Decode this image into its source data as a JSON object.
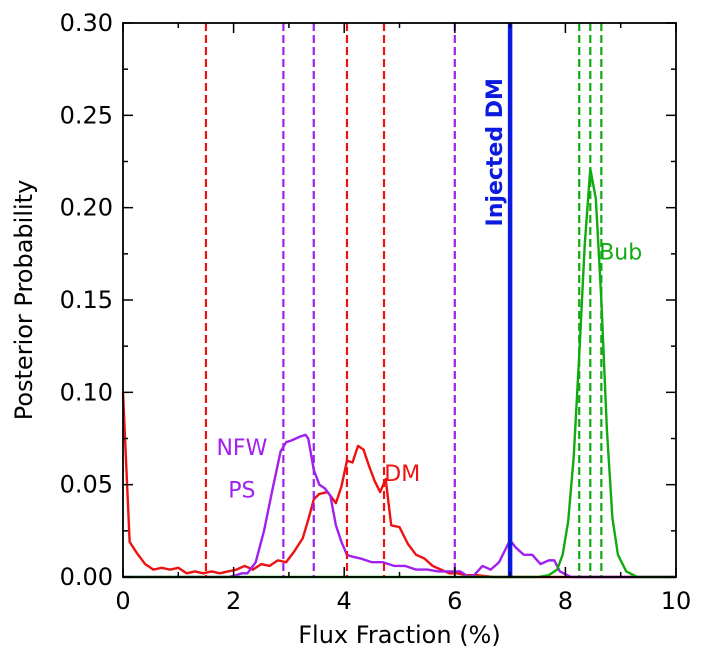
{
  "chart_data": {
    "type": "line",
    "xlabel": "Flux Fraction (%)",
    "ylabel": "Posterior Probability",
    "xlim": [
      0,
      10
    ],
    "ylim": [
      0,
      0.3
    ],
    "xticks": [
      0,
      2,
      4,
      6,
      8,
      10
    ],
    "xtick_labels": [
      "0",
      "2",
      "4",
      "6",
      "8",
      "10"
    ],
    "yticks": [
      0.0,
      0.05,
      0.1,
      0.15,
      0.2,
      0.25,
      0.3
    ],
    "ytick_labels": [
      "0.00",
      "0.05",
      "0.10",
      "0.15",
      "0.20",
      "0.25",
      "0.30"
    ],
    "grid": false,
    "series": [
      {
        "name": "DM",
        "color": "#ee1111",
        "x": [
          0,
          0.12,
          0.25,
          0.4,
          0.55,
          0.7,
          0.85,
          1.0,
          1.15,
          1.3,
          1.45,
          1.6,
          1.75,
          1.9,
          2.05,
          2.2,
          2.35,
          2.5,
          2.65,
          2.8,
          2.95,
          3.1,
          3.25,
          3.35,
          3.45,
          3.55,
          3.7,
          3.85,
          3.95,
          4.05,
          4.15,
          4.25,
          4.35,
          4.45,
          4.55,
          4.65,
          4.75,
          4.85,
          5.0,
          5.15,
          5.3,
          5.45,
          5.6,
          5.75,
          5.9,
          6.05,
          6.2,
          6.4,
          6.7,
          7.0,
          7.5,
          8.0,
          8.5,
          9.0,
          9.5,
          10.0
        ],
        "values": [
          0.1,
          0.019,
          0.013,
          0.007,
          0.004,
          0.005,
          0.004,
          0.005,
          0.002,
          0.003,
          0.002,
          0.003,
          0.002,
          0.003,
          0.004,
          0.006,
          0.004,
          0.007,
          0.006,
          0.009,
          0.008,
          0.014,
          0.021,
          0.031,
          0.042,
          0.045,
          0.046,
          0.04,
          0.049,
          0.063,
          0.062,
          0.071,
          0.069,
          0.06,
          0.052,
          0.046,
          0.053,
          0.028,
          0.027,
          0.018,
          0.012,
          0.01,
          0.006,
          0.004,
          0.002,
          0.002,
          0.001,
          0.001,
          0.0,
          0.0,
          0.0,
          0.0,
          0.0,
          0.0,
          0.0,
          0.0
        ]
      },
      {
        "name": "NFW PS",
        "color": "#a020f0",
        "x": [
          0,
          1.5,
          1.9,
          2.05,
          2.15,
          2.25,
          2.4,
          2.55,
          2.7,
          2.85,
          2.95,
          3.05,
          3.2,
          3.3,
          3.35,
          3.45,
          3.55,
          3.65,
          3.75,
          3.85,
          3.95,
          4.05,
          4.15,
          4.3,
          4.5,
          4.7,
          4.9,
          5.1,
          5.3,
          5.5,
          5.7,
          5.9,
          6.1,
          6.25,
          6.35,
          6.5,
          6.65,
          6.8,
          6.9,
          7.0,
          7.1,
          7.25,
          7.4,
          7.55,
          7.7,
          7.8,
          7.9,
          8.1,
          8.5,
          10.0
        ],
        "values": [
          0.0,
          0.0,
          0.0,
          0.001,
          0.002,
          0.002,
          0.008,
          0.025,
          0.047,
          0.068,
          0.073,
          0.074,
          0.076,
          0.077,
          0.075,
          0.058,
          0.05,
          0.048,
          0.044,
          0.028,
          0.019,
          0.012,
          0.011,
          0.01,
          0.008,
          0.008,
          0.006,
          0.006,
          0.004,
          0.004,
          0.003,
          0.003,
          0.003,
          0.0,
          0.001,
          0.006,
          0.004,
          0.008,
          0.014,
          0.02,
          0.016,
          0.012,
          0.012,
          0.007,
          0.009,
          0.009,
          0.003,
          0.0,
          0.0,
          0.0
        ]
      },
      {
        "name": "Bub",
        "color": "#11aa11",
        "x": [
          0,
          7.5,
          7.7,
          7.85,
          7.95,
          8.05,
          8.15,
          8.25,
          8.35,
          8.45,
          8.55,
          8.65,
          8.75,
          8.85,
          8.95,
          9.1,
          9.3,
          10.0
        ],
        "values": [
          0.0,
          0.0,
          0.001,
          0.004,
          0.012,
          0.03,
          0.065,
          0.12,
          0.18,
          0.221,
          0.205,
          0.15,
          0.08,
          0.032,
          0.012,
          0.003,
          0.0,
          0.0
        ]
      }
    ],
    "vlines": [
      {
        "name": "dm-ci-lower",
        "x": 1.5,
        "color": "#ee1111",
        "style": "dashed"
      },
      {
        "name": "dm-ci-median",
        "x": 4.05,
        "color": "#ee1111",
        "style": "dashed"
      },
      {
        "name": "dm-ci-upper",
        "x": 4.72,
        "color": "#ee1111",
        "style": "dashed"
      },
      {
        "name": "nfw-ps-ci-lower",
        "x": 2.9,
        "color": "#a020f0",
        "style": "dashed"
      },
      {
        "name": "nfw-ps-ci-median",
        "x": 3.45,
        "color": "#a020f0",
        "style": "dashed"
      },
      {
        "name": "nfw-ps-ci-upper",
        "x": 6.0,
        "color": "#a020f0",
        "style": "dashed"
      },
      {
        "name": "bub-ci-lower",
        "x": 8.25,
        "color": "#11aa11",
        "style": "dashed"
      },
      {
        "name": "bub-ci-median",
        "x": 8.45,
        "color": "#11aa11",
        "style": "dashed"
      },
      {
        "name": "bub-ci-upper",
        "x": 8.65,
        "color": "#11aa11",
        "style": "dashed"
      },
      {
        "name": "injected-dm-line",
        "x": 7.0,
        "color": "#0a1adf",
        "style": "solid"
      }
    ],
    "annotations": [
      {
        "name": "label-nfw",
        "text": "NFW",
        "x": 2.15,
        "y": 0.066,
        "color": "#a020f0",
        "rotate": false
      },
      {
        "name": "label-ps",
        "text": "PS",
        "x": 2.15,
        "y": 0.043,
        "color": "#a020f0",
        "rotate": false
      },
      {
        "name": "label-dm",
        "text": "DM",
        "x": 5.05,
        "y": 0.052,
        "color": "#ee1111",
        "rotate": false
      },
      {
        "name": "label-bub",
        "text": "Bub",
        "x": 9.0,
        "y": 0.172,
        "color": "#11aa11",
        "rotate": false
      },
      {
        "name": "label-injected-dm",
        "text": "Injected DM",
        "x": 6.85,
        "y": 0.23,
        "color": "#0a1adf",
        "rotate": true
      }
    ]
  }
}
